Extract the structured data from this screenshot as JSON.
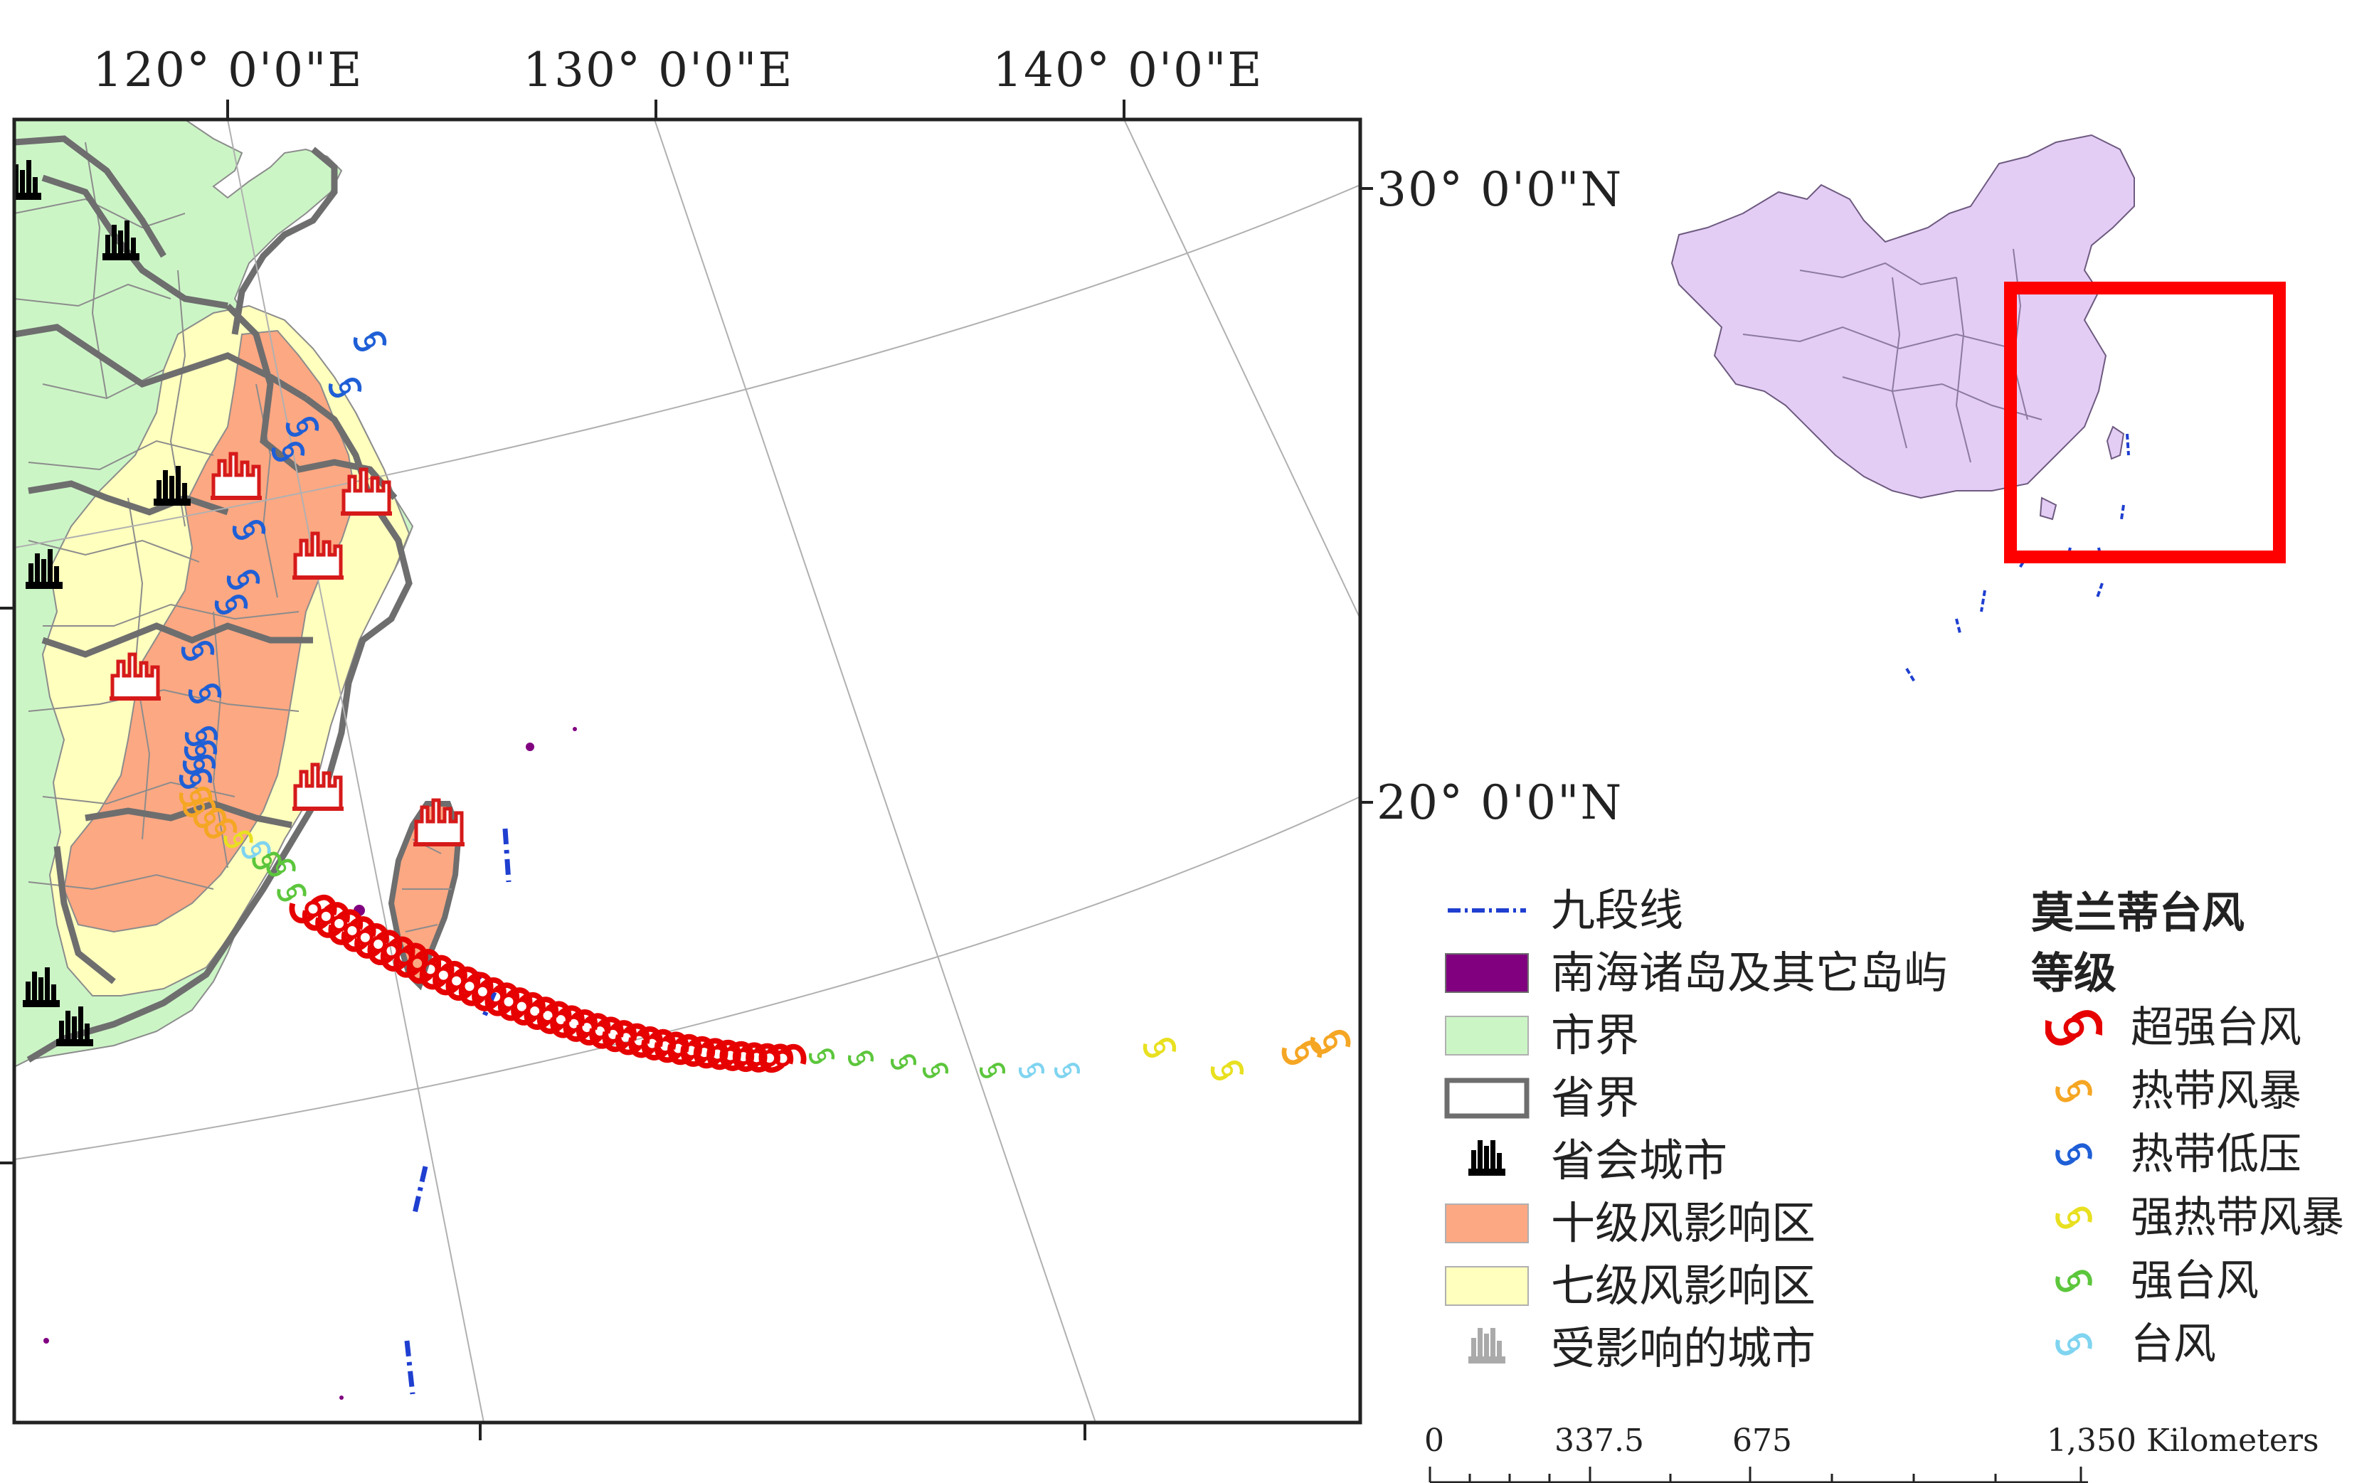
{
  "coords": {
    "top": [
      "120° 0'0\"E",
      "130° 0'0\"E",
      "140° 0'0\"E"
    ],
    "right": [
      "30° 0'0\"N",
      "20° 0'0\"N"
    ]
  },
  "legend_left": {
    "items": [
      {
        "id": "nine-dash",
        "label": "九段线"
      },
      {
        "id": "islands",
        "label": "南海诸岛及其它岛屿",
        "color": "#800080"
      },
      {
        "id": "city-boundary",
        "label": "市界",
        "color": "#ccf5c6"
      },
      {
        "id": "province-boundary",
        "label": "省界",
        "color": "#6e6e6e"
      },
      {
        "id": "capital-city",
        "label": "省会城市",
        "color": "#000000"
      },
      {
        "id": "level10-zone",
        "label": "十级风影响区",
        "color": "#fca883"
      },
      {
        "id": "level7-zone",
        "label": "七级风影响区",
        "color": "#ffffbe"
      },
      {
        "id": "affected-city",
        "label": "受影响的城市",
        "color": "#aaaaaa"
      }
    ]
  },
  "legend_right": {
    "title_line1": "莫兰蒂台风",
    "title_line2": "等级",
    "items": [
      {
        "label": "超强台风",
        "color": "#e60000",
        "icon": "super-typhoon-icon"
      },
      {
        "label": "热带风暴",
        "color": "#f5a623",
        "icon": "tropical-storm-icon"
      },
      {
        "label": "热带低压",
        "color": "#1f5fd6",
        "icon": "tropical-depression-icon"
      },
      {
        "label": "强热带风暴",
        "color": "#e8e020",
        "icon": "severe-tropical-storm-icon"
      },
      {
        "label": "强台风",
        "color": "#5cc63c",
        "icon": "severe-typhoon-icon"
      },
      {
        "label": "台风",
        "color": "#7fd4f0",
        "icon": "typhoon-icon"
      }
    ]
  },
  "scale_bar": {
    "labels": [
      "0",
      "337.5",
      "675",
      "1,350 Kilometers"
    ]
  },
  "colors": {
    "map_frame": "#222222",
    "inset_fill": "#e3cdf5",
    "inset_frame": "#ff0000"
  }
}
